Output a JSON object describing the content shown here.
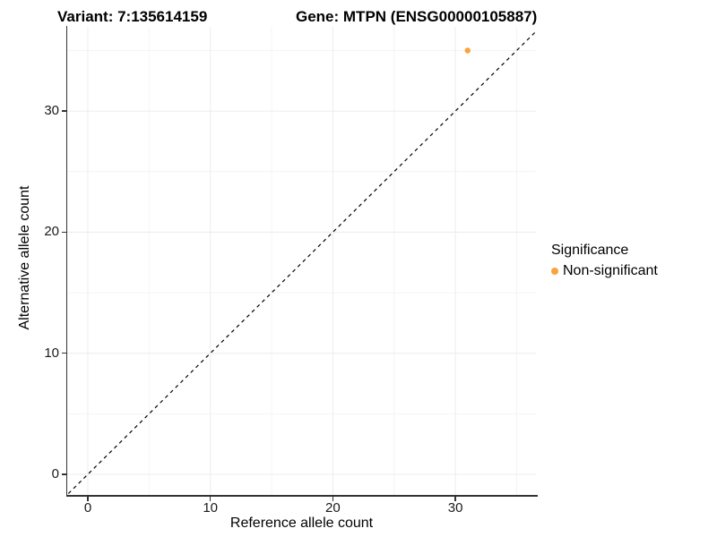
{
  "titles": {
    "variant": "Variant: 7:135614159",
    "gene": "Gene: MTPN (ENSG00000105887)"
  },
  "axes": {
    "x": {
      "label": "Reference allele count",
      "ticks": [
        "0",
        "10",
        "20",
        "30"
      ]
    },
    "y": {
      "label": "Alternative allele count",
      "ticks": [
        "0",
        "10",
        "20",
        "30"
      ]
    }
  },
  "legend": {
    "title": "Significance",
    "items": [
      {
        "label": "Non-significant",
        "color": "#F9A33B"
      }
    ]
  },
  "colors": {
    "point": "#F9A33B",
    "axis": "#333333",
    "grid_major": "#ececec",
    "grid_minor": "#f4f4f4",
    "reference_line": "#000000"
  },
  "chart_data": {
    "type": "scatter",
    "title": "Variant: 7:135614159    Gene: MTPN (ENSG00000105887)",
    "xlabel": "Reference allele count",
    "ylabel": "Alternative allele count",
    "xlim": [
      -1.7,
      36.6
    ],
    "ylim": [
      -1.7,
      37.0
    ],
    "x_major_ticks": [
      0,
      10,
      20,
      30
    ],
    "y_major_ticks": [
      0,
      10,
      20,
      30
    ],
    "x_minor_gridlines": [
      5,
      15,
      25,
      35
    ],
    "y_minor_gridlines": [
      5,
      15,
      25,
      35
    ],
    "grid": true,
    "legend_position": "right",
    "series": [
      {
        "name": "Non-significant",
        "color": "#F9A33B",
        "points": [
          {
            "x": 31,
            "y": 35
          }
        ]
      }
    ],
    "reference_line": {
      "equation": "y = x",
      "style": "dashed",
      "color": "#000000"
    }
  }
}
